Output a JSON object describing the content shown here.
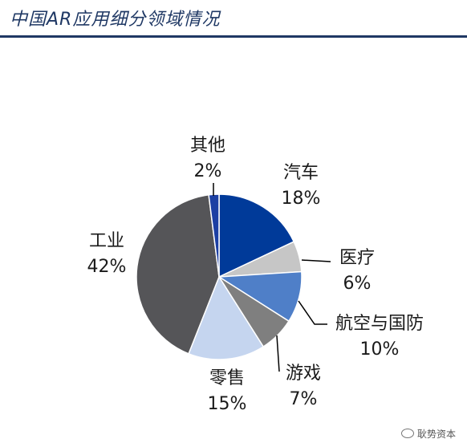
{
  "header": {
    "title": "中国AR应用细分领域情况"
  },
  "watermark": {
    "text": "耿势资本"
  },
  "chart_data": {
    "type": "pie",
    "title": "中国AR应用细分领域情况",
    "unit": "%",
    "slices": [
      {
        "label": "汽车",
        "value": 18,
        "value_label": "18%",
        "color": "#003a99"
      },
      {
        "label": "医疗",
        "value": 6,
        "value_label": "6%",
        "color": "#c6c6c6"
      },
      {
        "label": "航空与国防",
        "value": 10,
        "value_label": "10%",
        "color": "#4f7fc8"
      },
      {
        "label": "游戏",
        "value": 7,
        "value_label": "7%",
        "color": "#7f7f7f"
      },
      {
        "label": "零售",
        "value": 15,
        "value_label": "15%",
        "color": "#c5d5ef"
      },
      {
        "label": "工业",
        "value": 42,
        "value_label": "42%",
        "color": "#555558"
      },
      {
        "label": "其他",
        "value": 2,
        "value_label": "2%",
        "color": "#1c3fa3"
      }
    ]
  }
}
